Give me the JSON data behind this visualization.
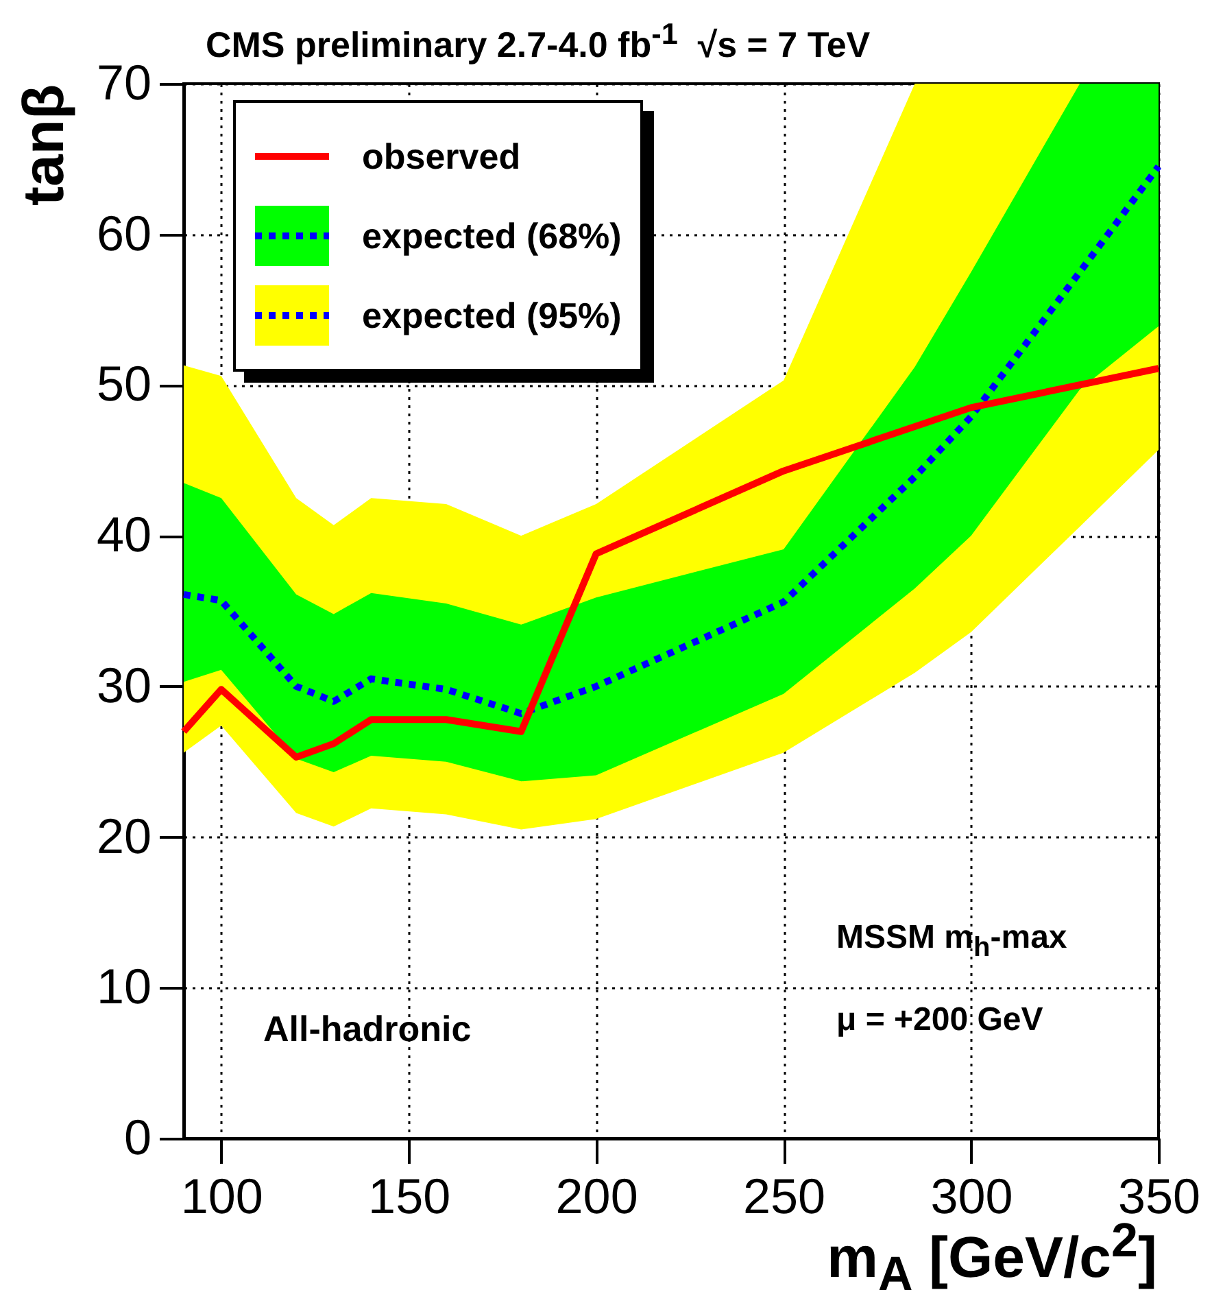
{
  "chart_data": {
    "type": "line",
    "title": "CMS preliminary 2.7-4.0 fb$^{-1}$  √s = 7 TeV",
    "xlabel": "m$_{A}$ [GeV/c$^{2}$]",
    "ylabel": "tanβ",
    "annotations": [
      "All-hadronic",
      "MSSM m$_{h}$-max",
      "μ = +200 GeV"
    ],
    "xlim": [
      90,
      350
    ],
    "xticks": [
      100,
      150,
      200,
      250,
      300,
      350
    ],
    "ylim": [
      0,
      70
    ],
    "yticks": [
      0,
      10,
      20,
      30,
      40,
      50,
      60,
      70
    ],
    "grid": true,
    "legend": "top left",
    "series": [
      {
        "name": "observed",
        "color": "#ff0000",
        "line_style": "solid",
        "x": [
          90,
          100,
          120,
          130,
          140,
          160,
          180,
          200,
          250,
          300,
          350
        ],
        "values": [
          27,
          29.8,
          25.3,
          26.2,
          27.8,
          27.8,
          27,
          38.8,
          44.3,
          48.5,
          51.1
        ]
      },
      {
        "name": "expected (68%)",
        "color": "#00ff00",
        "x": [
          90,
          100,
          120,
          130,
          140,
          160,
          180,
          200,
          250,
          285,
          300,
          329,
          350
        ],
        "values": [
          null,
          null,
          null,
          null,
          null,
          null,
          null,
          null,
          null,
          null,
          null,
          null,
          null
        ],
        "lower": [
          30.3,
          31.1,
          25.2,
          24.3,
          25.4,
          25,
          23.7,
          24.1,
          29.5,
          36.5,
          40,
          49.7,
          53.9
        ],
        "upper": [
          43.5,
          42.5,
          36.1,
          34.8,
          36.2,
          35.5,
          34.1,
          35.9,
          39.1,
          51.2,
          57.5,
          70,
          70
        ]
      },
      {
        "name": "expected (95%)",
        "color": "#ffff00",
        "x": [
          90,
          100,
          120,
          130,
          140,
          160,
          180,
          200,
          250,
          285,
          300,
          329,
          350
        ],
        "values": [
          null,
          null,
          null,
          null,
          null,
          null,
          null,
          null,
          null,
          null,
          null,
          null,
          null
        ],
        "lower": [
          25.6,
          27.4,
          21.6,
          20.7,
          21.9,
          21.5,
          20.5,
          21.2,
          25.6,
          30.9,
          33.6,
          40.6,
          45.7
        ],
        "upper": [
          51.3,
          50.6,
          42.5,
          40.7,
          42.5,
          42.1,
          40,
          42.1,
          50.3,
          70,
          70,
          70,
          70
        ]
      },
      {
        "color": "#0000ff",
        "line_style": "dotted",
        "x": [
          90,
          100,
          120,
          130,
          140,
          160,
          180,
          200,
          250,
          285,
          300,
          329,
          350
        ],
        "values": [
          36.1,
          35.7,
          30,
          29,
          30.5,
          29.8,
          28.2,
          30,
          35.6,
          43.9,
          47.9,
          57.5,
          64.5
        ]
      }
    ]
  }
}
